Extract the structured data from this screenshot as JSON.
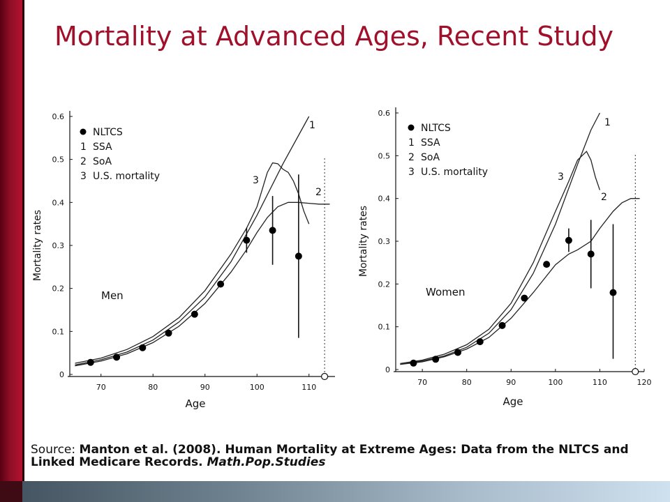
{
  "slide": {
    "title": "Mortality at Advanced Ages, Recent Study",
    "source_prefix": "Source:  ",
    "source_body": "Manton et al. (2008). Human Mortality at Extreme Ages: Data from the NLTCS and Linked Medicare Records. ",
    "source_journal": "Math.Pop.Studies",
    "colors": {
      "accent": "#a0102a",
      "side_bar": "#8e0f26",
      "bottom_bar": "#6f828f"
    }
  },
  "chart_data": [
    {
      "type": "line",
      "panel_label": "Men",
      "xlabel": "Age",
      "ylabel": "Mortality rates",
      "xlim": [
        64,
        115
      ],
      "ylim": [
        0,
        0.6
      ],
      "xticks": [
        70,
        80,
        90,
        100,
        110
      ],
      "yticks": [
        0,
        0.1,
        0.2,
        0.3,
        0.4,
        0.5,
        0.6
      ],
      "legend": {
        "placement": "top-left",
        "entries": [
          {
            "marker": "●",
            "label": "NLTCS"
          },
          {
            "marker": "1",
            "label": "SSA"
          },
          {
            "marker": "2",
            "label": "SoA"
          },
          {
            "marker": "3",
            "label": "U.S. mortality"
          }
        ]
      },
      "dashed_vline_x": 113,
      "open_marker": {
        "x": 113,
        "y": 0
      },
      "series": [
        {
          "name": "1",
          "x": [
            65,
            70,
            75,
            80,
            85,
            90,
            95,
            100,
            105,
            110
          ],
          "y": [
            0.022,
            0.034,
            0.052,
            0.08,
            0.122,
            0.18,
            0.262,
            0.37,
            0.49,
            0.6
          ]
        },
        {
          "name": "2",
          "x": [
            65,
            70,
            75,
            80,
            85,
            90,
            95,
            98,
            100,
            102,
            104,
            106,
            108,
            110,
            112,
            113,
            114
          ],
          "y": [
            0.02,
            0.031,
            0.048,
            0.074,
            0.112,
            0.165,
            0.238,
            0.29,
            0.33,
            0.365,
            0.39,
            0.4,
            0.4,
            0.398,
            0.396,
            0.396,
            0.396
          ]
        },
        {
          "name": "3",
          "x": [
            65,
            70,
            75,
            80,
            85,
            90,
            95,
            98,
            100,
            101,
            102,
            103,
            104,
            105,
            106,
            107,
            108,
            109,
            110
          ],
          "y": [
            0.026,
            0.038,
            0.058,
            0.088,
            0.132,
            0.195,
            0.28,
            0.34,
            0.39,
            0.43,
            0.47,
            0.492,
            0.49,
            0.477,
            0.47,
            0.45,
            0.42,
            0.38,
            0.35
          ]
        }
      ],
      "points": [
        {
          "x": 68,
          "y": 0.028
        },
        {
          "x": 73,
          "y": 0.04
        },
        {
          "x": 78,
          "y": 0.062
        },
        {
          "x": 83,
          "y": 0.096
        },
        {
          "x": 88,
          "y": 0.14
        },
        {
          "x": 93,
          "y": 0.21
        },
        {
          "x": 98,
          "y": 0.312,
          "err": [
            0.283,
            0.341
          ]
        },
        {
          "x": 103,
          "y": 0.335,
          "err": [
            0.255,
            0.415
          ]
        },
        {
          "x": 108,
          "y": 0.275,
          "err": [
            0.085,
            0.465
          ]
        }
      ]
    },
    {
      "type": "line",
      "panel_label": "Women",
      "xlabel": "Age",
      "ylabel": "Mortality rates",
      "xlim": [
        64,
        120
      ],
      "ylim": [
        0,
        0.6
      ],
      "xticks": [
        70,
        80,
        90,
        100,
        110,
        120
      ],
      "yticks": [
        0,
        0.1,
        0.2,
        0.3,
        0.4,
        0.5,
        0.6
      ],
      "legend": {
        "placement": "top-left",
        "entries": [
          {
            "marker": "●",
            "label": "NLTCS"
          },
          {
            "marker": "1",
            "label": "SSA"
          },
          {
            "marker": "2",
            "label": "SoA"
          },
          {
            "marker": "3",
            "label": "U.S. mortality"
          }
        ]
      },
      "dashed_vline_x": 118,
      "open_marker": {
        "x": 118,
        "y": 0
      },
      "series": [
        {
          "name": "1",
          "x": [
            65,
            70,
            75,
            80,
            85,
            90,
            95,
            100,
            105,
            108,
            110
          ],
          "y": [
            0.012,
            0.02,
            0.032,
            0.052,
            0.085,
            0.14,
            0.225,
            0.34,
            0.48,
            0.56,
            0.6
          ]
        },
        {
          "name": "2",
          "x": [
            65,
            70,
            75,
            80,
            85,
            90,
            95,
            100,
            103,
            105,
            108,
            110,
            113,
            115,
            117,
            118,
            119
          ],
          "y": [
            0.012,
            0.018,
            0.03,
            0.048,
            0.075,
            0.12,
            0.18,
            0.245,
            0.27,
            0.28,
            0.3,
            0.33,
            0.37,
            0.39,
            0.4,
            0.4,
            0.4
          ]
        },
        {
          "name": "3",
          "x": [
            65,
            70,
            75,
            80,
            85,
            90,
            95,
            100,
            103,
            105,
            106,
            107,
            108,
            109,
            110
          ],
          "y": [
            0.014,
            0.022,
            0.036,
            0.058,
            0.094,
            0.155,
            0.25,
            0.37,
            0.44,
            0.49,
            0.5,
            0.51,
            0.49,
            0.45,
            0.42
          ]
        }
      ],
      "points": [
        {
          "x": 68,
          "y": 0.015
        },
        {
          "x": 73,
          "y": 0.024
        },
        {
          "x": 78,
          "y": 0.04
        },
        {
          "x": 83,
          "y": 0.065
        },
        {
          "x": 88,
          "y": 0.103
        },
        {
          "x": 93,
          "y": 0.167
        },
        {
          "x": 98,
          "y": 0.246
        },
        {
          "x": 103,
          "y": 0.302,
          "err": [
            0.275,
            0.33
          ]
        },
        {
          "x": 108,
          "y": 0.27,
          "err": [
            0.19,
            0.35
          ]
        },
        {
          "x": 113,
          "y": 0.18,
          "err": [
            0.025,
            0.34
          ]
        }
      ]
    }
  ]
}
